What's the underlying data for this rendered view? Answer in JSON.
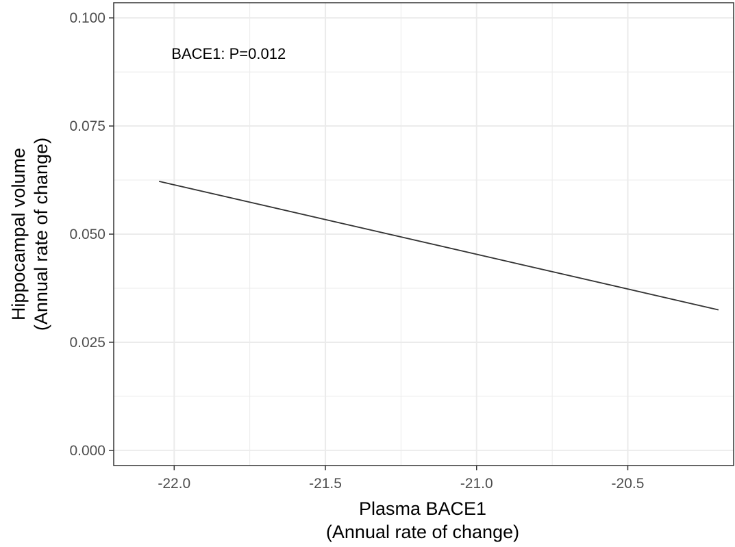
{
  "chart_data": {
    "type": "line",
    "xlabel_line1": "Plasma BACE1",
    "xlabel_line2": "(Annual rate of change)",
    "ylabel_line1": "Hippocampal volume",
    "ylabel_line2": "(Annual rate of change)",
    "annotation": "BACE1: P=0.012",
    "xlim": [
      -22.2,
      -20.15
    ],
    "ylim": [
      -0.0035,
      0.1035
    ],
    "xticks": [
      -22.0,
      -21.5,
      -21.0,
      -20.5
    ],
    "xtick_labels": [
      "-22.0",
      "-21.5",
      "-21.0",
      "-20.5"
    ],
    "yticks": [
      0.0,
      0.025,
      0.05,
      0.075,
      0.1
    ],
    "ytick_labels": [
      "0.000",
      "0.025",
      "0.050",
      "0.075",
      "0.100"
    ],
    "grid": true,
    "series": [
      {
        "x": [
          -22.05,
          -20.2
        ],
        "y": [
          0.0622,
          0.0325
        ]
      }
    ],
    "annotation_x": -21.82,
    "annotation_y": 0.0905,
    "colors": {
      "line": "#333333",
      "grid": "#ebebeb",
      "panel_border": "#333333"
    }
  }
}
